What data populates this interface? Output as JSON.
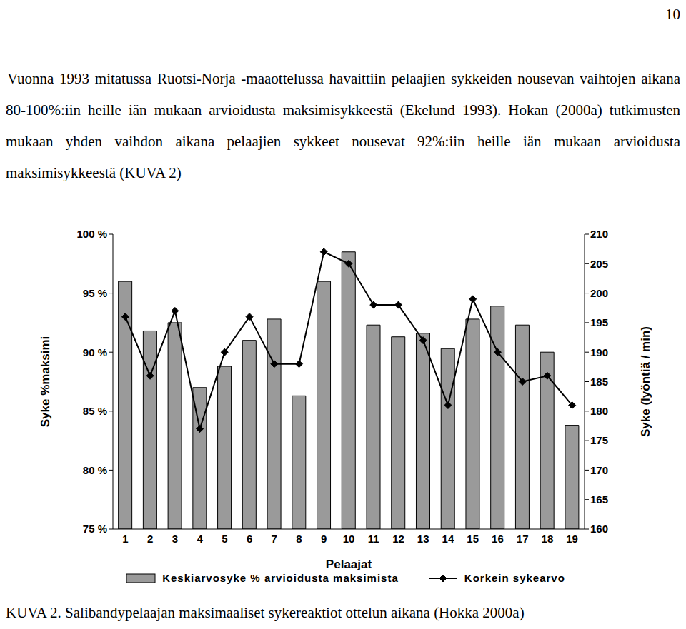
{
  "page_number": "10",
  "paragraph": "Vuonna 1993 mitatussa Ruotsi-Norja -maaottelussa havaittiin pelaajien sykkeiden nousevan vaihtojen aikana 80-100%:iin heille iän mukaan arvioidusta maksimisykkeestä (Ekelund 1993). Hokan (2000a) tutkimusten mukaan yhden vaihdon aikana pelaajien sykkeet nousevat 92%:iin heille iän mukaan arvioidusta maksimisykkeestä (KUVA 2)",
  "caption": "KUVA 2. Salibandypelaajan maksimaaliset sykereaktiot ottelun aikana (Hokka 2000a)",
  "chart_data": {
    "type": "bar",
    "x_label": "Pelaajat",
    "y_label": "Syke %maksimi",
    "y2_label": "Syke (lyöntiä / min)",
    "categories": [
      "1",
      "2",
      "3",
      "4",
      "5",
      "6",
      "7",
      "8",
      "9",
      "10",
      "11",
      "12",
      "13",
      "14",
      "15",
      "16",
      "17",
      "18",
      "19"
    ],
    "series": [
      {
        "name": "Keskiarvosyke % arvioidusta maksimista",
        "type": "bar",
        "color": "#9a9a9a",
        "values": [
          96,
          91.8,
          92.5,
          87,
          88.8,
          91,
          92.8,
          86.3,
          96,
          98.5,
          92.3,
          91.3,
          91.6,
          90.3,
          92.8,
          93.9,
          92.3,
          90,
          83.8
        ]
      },
      {
        "name": "Korkein sykearvo",
        "type": "line",
        "axis": "y2",
        "color": "#000000",
        "marker": "diamond",
        "line_style": "solid",
        "values": [
          196,
          186,
          197,
          177,
          190,
          196,
          188,
          188,
          207,
          205,
          198,
          198,
          192,
          181,
          199,
          190,
          185,
          186,
          181
        ]
      }
    ],
    "ylim": [
      75,
      100
    ],
    "yticks": [
      {
        "value": 75,
        "label": "75 %"
      },
      {
        "value": 80,
        "label": "80 %"
      },
      {
        "value": 85,
        "label": "85 %"
      },
      {
        "value": 90,
        "label": "90 %"
      },
      {
        "value": 95,
        "label": "95 %"
      },
      {
        "value": 100,
        "label": "100 %"
      }
    ],
    "y2lim": [
      160,
      210
    ],
    "y2ticks": [
      160,
      165,
      170,
      175,
      180,
      185,
      190,
      195,
      200,
      205,
      210
    ],
    "grid": false,
    "legend": "bottom"
  }
}
